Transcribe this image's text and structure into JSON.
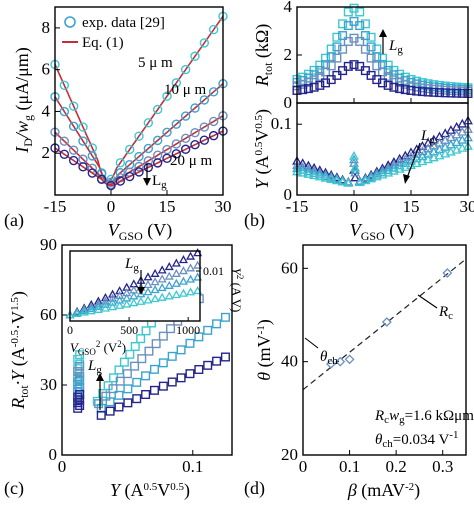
{
  "colors": {
    "c5": "#3ec7cf",
    "c10": "#3aa3cf",
    "c15": "#6b8fbf",
    "c20": "#24248c",
    "fit": "#c0303a",
    "grey": "#6b7d94",
    "ink": "#000000"
  },
  "chart_data": [
    {
      "panel": "(a)",
      "type": "scatter",
      "xlabel_main": "V",
      "xlabel_sub": "GSO",
      "xlabel_unit": " (V)",
      "ylabel_main": "I",
      "ylabel_sub1": "D",
      "ylabel_mid": "/w",
      "ylabel_sub2": "g",
      "ylabel_unit": " (μA/μm)",
      "xlim": [
        -15,
        30
      ],
      "ylim": [
        0,
        9
      ],
      "xticks": [
        "-15",
        "0",
        "15",
        "30"
      ],
      "xtick_values": [
        -15,
        0,
        15,
        30
      ],
      "yticks": [
        "2",
        "4",
        "6",
        "8"
      ],
      "ytick_values": [
        2,
        4,
        6,
        8
      ],
      "legend": [
        {
          "label": "exp. data [29]",
          "marker": "circle"
        },
        {
          "label": "Eq. (1)",
          "marker": "line"
        }
      ],
      "annotations": {
        "l5": "5 μ m",
        "l10": "10 μ m",
        "l20": "20 μ m",
        "arrow_label": "L",
        "arrow_sub": "g"
      },
      "series": [
        {
          "length_um": 5,
          "color_key": "c5",
          "vmin": -1,
          "imin": 0.65,
          "left_slope": 0.4,
          "right_slope": 0.255,
          "x_left": -15,
          "x_right": 30
        },
        {
          "length_um": 10,
          "color_key": "c10",
          "vmin": -0.5,
          "imin": 0.6,
          "left_slope": 0.283,
          "right_slope": 0.155,
          "x_left": -15,
          "x_right": 30
        },
        {
          "length_um": 15,
          "color_key": "c15",
          "vmin": -0.5,
          "imin": 0.5,
          "left_slope": 0.173,
          "right_slope": 0.108,
          "x_left": -15,
          "x_right": 30
        },
        {
          "length_um": 20,
          "color_key": "c20",
          "vmin": 0,
          "imin": 0.45,
          "left_slope": 0.12,
          "right_slope": 0.087,
          "x_left": -15,
          "x_right": 30
        }
      ]
    },
    {
      "panel": "(b)",
      "type": "scatter",
      "xlabel_main": "V",
      "xlabel_sub": "GSO",
      "xlabel_unit": " (V)",
      "xlim": [
        -15,
        30
      ],
      "xticks": [
        "-15",
        "0",
        "15",
        "30"
      ],
      "xtick_values": [
        -15,
        0,
        15,
        30
      ],
      "top": {
        "ylabel_main": "R",
        "ylabel_sub": "tot",
        "ylabel_unit": " (kΩ)",
        "ylim": [
          0,
          4
        ],
        "yticks": [
          "0",
          "2",
          "4"
        ],
        "ytick_values": [
          0,
          2,
          4
        ],
        "arrow_label": "L",
        "arrow_sub": "g",
        "series": [
          {
            "color_key": "c5",
            "peak": 4.0,
            "base": 0.5,
            "width": 6.0
          },
          {
            "color_key": "c10",
            "peak": 3.4,
            "base": 0.45,
            "width": 6.0
          },
          {
            "color_key": "c15",
            "peak": 2.7,
            "base": 0.4,
            "width": 6.0
          },
          {
            "color_key": "c20",
            "peak": 1.6,
            "base": 0.35,
            "width": 6.0
          }
        ]
      },
      "bottom": {
        "ylabel_main": "Y",
        "ylabel_unit_pre": " (A",
        "ylabel_sup1": "0.5",
        "ylabel_unit_mid": "V",
        "ylabel_sup2": "0.5",
        "ylabel_unit_post": ")",
        "ylim": [
          0,
          0.13
        ],
        "yticks": [
          "0",
          "0.1"
        ],
        "ytick_values": [
          0,
          0.1
        ],
        "arrow_label": "L",
        "arrow_sub": "g",
        "series": [
          {
            "color_key": "c20",
            "slope_left": 0.0022,
            "slope_right": 0.003,
            "spike": 0.035
          },
          {
            "color_key": "c15",
            "slope_left": 0.0018,
            "slope_right": 0.0026,
            "spike": 0.045
          },
          {
            "color_key": "c10",
            "slope_left": 0.0015,
            "slope_right": 0.0022,
            "spike": 0.05
          },
          {
            "color_key": "c5",
            "slope_left": 0.0012,
            "slope_right": 0.0018,
            "spike": 0.055
          }
        ]
      }
    },
    {
      "panel": "(c)",
      "type": "scatter",
      "xlabel_main": "Y",
      "xlabel_unit_pre": " (A",
      "xlabel_sup1": "0.5",
      "xlabel_unit_mid": "V",
      "xlabel_sup2": "0.5",
      "xlabel_unit_post": ")",
      "ylabel_main": "R",
      "ylabel_sub": "tot",
      "ylabel_mid": "·Y",
      "ylabel_unit_pre": " (A",
      "ylabel_sup1": "-0.5",
      "ylabel_unit_mid": "·V",
      "ylabel_sup2": "1.5",
      "ylabel_unit_post": ")",
      "xlim": [
        0,
        0.13
      ],
      "ylim": [
        0,
        90
      ],
      "xticks": [
        "0",
        "0.1"
      ],
      "xtick_values": [
        0,
        0.1
      ],
      "yticks": [
        "0",
        "30",
        "60",
        "90"
      ],
      "ytick_values": [
        0,
        30,
        60,
        90
      ],
      "arrow_label": "L",
      "arrow_sub": "g",
      "series": [
        {
          "color_key": "c5",
          "x0": 0.027,
          "y0": 23,
          "x1": 0.085,
          "y1": 70,
          "clump_y": [
            33,
            43
          ]
        },
        {
          "color_key": "c15",
          "x0": 0.028,
          "y0": 22,
          "x1": 0.105,
          "y1": 67,
          "clump_y": [
            27,
            38
          ]
        },
        {
          "color_key": "c10",
          "x0": 0.03,
          "y0": 20,
          "x1": 0.125,
          "y1": 59,
          "clump_y": [
            24,
            32
          ]
        },
        {
          "color_key": "c20",
          "x0": 0.03,
          "y0": 17,
          "x1": 0.125,
          "y1": 42,
          "clump_y": [
            20,
            26
          ]
        }
      ],
      "inset": {
        "xlabel_main": "V",
        "xlabel_sub": "GSO",
        "xlabel_sup": "2",
        "xlabel_unit_pre": " (V",
        "xlabel_unit_sup": "2",
        "xlabel_unit_post": ")",
        "ylabel_main": "Y",
        "ylabel_sup": "2",
        "ylabel_unit_pre": " (A V",
        "ylabel_unit_post": ")",
        "xlim": [
          0,
          1100
        ],
        "ylim": [
          0,
          0.014
        ],
        "xticks": [
          "0",
          "500",
          "1000"
        ],
        "xtick_values": [
          0,
          500,
          1000
        ],
        "yticks": [
          "0.01"
        ],
        "ytick_values": [
          0.01
        ],
        "arrow_label": "L",
        "arrow_sub": "g",
        "series": [
          {
            "color_key": "c20",
            "slope": 1.15e-05
          },
          {
            "color_key": "c15",
            "slope": 9.2e-06
          },
          {
            "color_key": "c10",
            "slope": 7e-06
          },
          {
            "color_key": "c5",
            "slope": 4.5e-06
          }
        ]
      }
    },
    {
      "panel": "(d)",
      "type": "scatter",
      "xlabel_main": "β",
      "xlabel_unit_pre": " (mAV",
      "xlabel_sup": "-2",
      "xlabel_unit_post": ")",
      "ylabel_main": "θ",
      "ylabel_unit_pre": " (mV",
      "ylabel_sup": "-1",
      "ylabel_unit_post": ")",
      "xlim": [
        0,
        0.35
      ],
      "ylim": [
        20,
        65
      ],
      "xticks": [
        "0",
        "0.1",
        "0.2",
        "0.3"
      ],
      "xtick_values": [
        0,
        0.1,
        0.2,
        0.3
      ],
      "yticks": [
        "20",
        "40",
        "60"
      ],
      "ytick_values": [
        20,
        40,
        60
      ],
      "points_x": [
        0.06,
        0.08,
        0.1,
        0.18,
        0.31
      ],
      "points_y": [
        39.5,
        40.0,
        40.5,
        48.5,
        59.0
      ],
      "fit_line": {
        "x": [
          0,
          0.35
        ],
        "y": [
          34.0,
          62.0
        ]
      },
      "annotations": {
        "rc_main": "R",
        "rc_sub": "c",
        "theta_main": "θ",
        "theta_sub": "ch",
        "stat1_main": "R",
        "stat1_sub": "c",
        "stat1_mid": "w",
        "stat1_sub2": "g",
        "stat1_val": "=1.6 kΩμm",
        "stat2_main": "θ",
        "stat2_sub": "ch",
        "stat2_val": "=0.034 V",
        "stat2_sup": "-1"
      }
    }
  ]
}
